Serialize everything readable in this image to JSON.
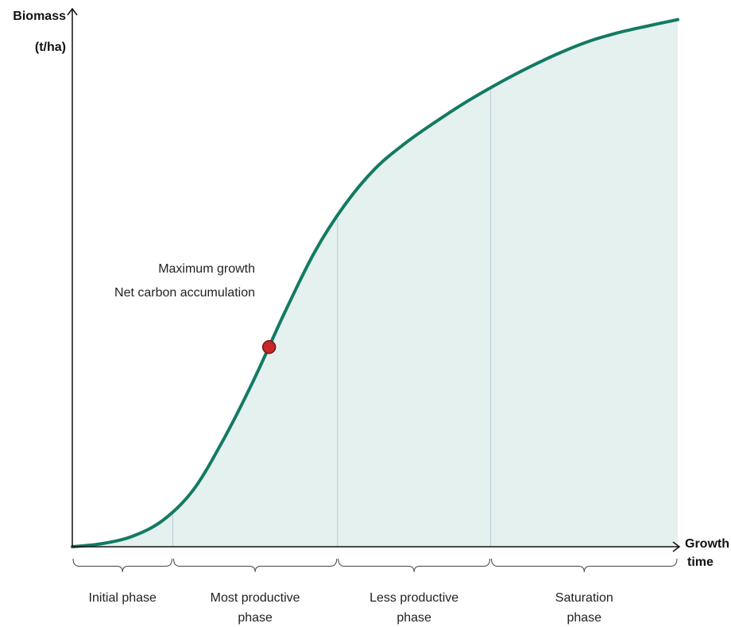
{
  "chart_data": {
    "type": "area",
    "xlabel": [
      "Growth",
      "time"
    ],
    "ylabel": [
      "Biomass",
      "(t/ha)"
    ],
    "x_ticks_shown": false,
    "y_ticks_shown": false,
    "series": [
      {
        "x": [
          0,
          5,
          10,
          15,
          20,
          25,
          30,
          35,
          40,
          45,
          50,
          55,
          60,
          65,
          70,
          75,
          80,
          85,
          90,
          95,
          100
        ],
        "values": [
          0,
          0.6,
          2.0,
          5.0,
          10.7,
          20.2,
          31.4,
          43.8,
          55.3,
          64.2,
          71.0,
          75.8,
          79.8,
          83.5,
          86.8,
          89.8,
          92.5,
          94.8,
          96.5,
          97.8,
          99.0
        ]
      }
    ],
    "xlim": [
      0,
      100
    ],
    "ylim": [
      0,
      100
    ],
    "phase_boundaries": [
      16.6,
      43.8,
      69.1
    ],
    "marker": {
      "x": 32.5,
      "y": 37.5,
      "color": "#c62828"
    },
    "colors": {
      "line": "#137a63",
      "fill": "#e4f1ee",
      "divider": "#b8ccd8",
      "axis": "#111111"
    }
  },
  "annotation": {
    "line1": "Maximum growth",
    "line2": "Net carbon accumulation"
  },
  "phases": [
    {
      "label": [
        "Initial phase"
      ]
    },
    {
      "label": [
        "Most productive",
        "phase"
      ]
    },
    {
      "label": [
        "Less productive",
        "phase"
      ]
    },
    {
      "label": [
        "Saturation",
        "phase"
      ]
    }
  ]
}
